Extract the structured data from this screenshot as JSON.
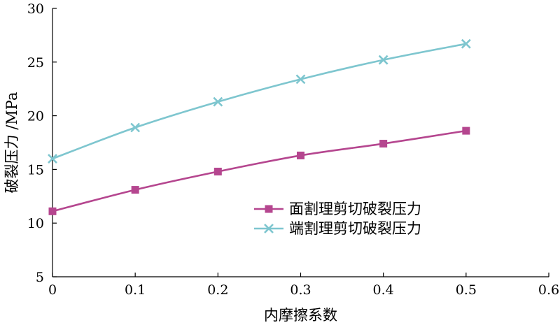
{
  "chart_data": {
    "type": "line",
    "title": "",
    "xlabel": "内摩擦系数",
    "ylabel": "破裂压力 /MPa",
    "xlim": [
      0,
      0.6
    ],
    "ylim": [
      5,
      30
    ],
    "x_ticks": [
      "0",
      "0.1",
      "0.2",
      "0.3",
      "0.4",
      "0.5",
      "0.6"
    ],
    "y_ticks": [
      "5",
      "10",
      "15",
      "20",
      "25",
      "30"
    ],
    "grid": false,
    "legend_position": "center-right",
    "series": [
      {
        "name": "面割理剪切破裂压力",
        "color": "#b5468f",
        "marker": "square",
        "x": [
          0,
          0.1,
          0.2,
          0.3,
          0.4,
          0.5
        ],
        "y": [
          11.1,
          13.1,
          14.8,
          16.3,
          17.4,
          18.6
        ]
      },
      {
        "name": "端割理剪切破裂压力",
        "color": "#7ec6cf",
        "marker": "x",
        "x": [
          0,
          0.1,
          0.2,
          0.3,
          0.4,
          0.5
        ],
        "y": [
          16.0,
          18.9,
          21.3,
          23.4,
          25.2,
          26.7
        ]
      }
    ]
  }
}
